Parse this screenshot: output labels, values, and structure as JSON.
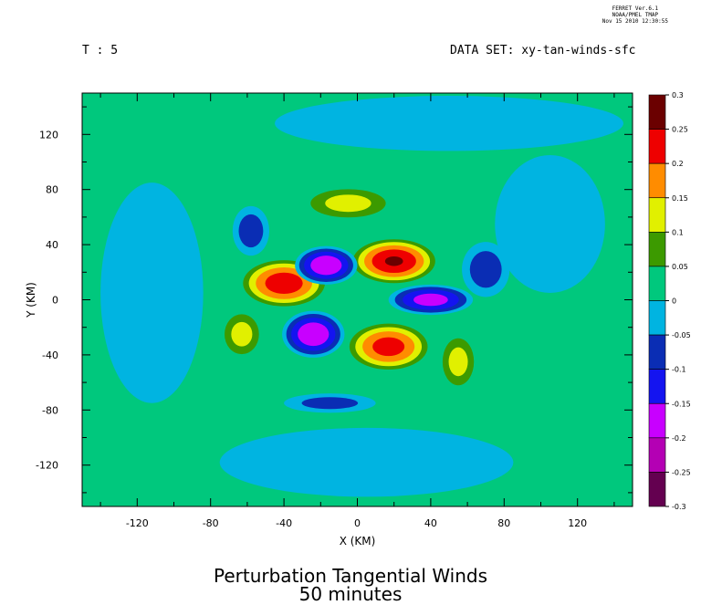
{
  "header": {
    "stamp": [
      "FERRET Ver.6.1",
      "NOAA/PMEL TMAP",
      "Nov 15 2010 12:30:55"
    ],
    "time_label": "T : 5",
    "dataset_label": "DATA SET: xy-tan-winds-sfc"
  },
  "chart_data": {
    "type": "heatmap",
    "title": "Perturbation Tangential Winds",
    "subtitle": "50 minutes",
    "xlabel": "X (KM)",
    "ylabel": "Y (KM)",
    "xlim": [
      -150,
      150
    ],
    "ylim": [
      -150,
      150
    ],
    "x_ticks": [
      -120,
      -80,
      -40,
      0,
      40,
      80,
      120
    ],
    "y_ticks": [
      120,
      80,
      40,
      0,
      -40,
      -80,
      -120
    ],
    "colorbar": {
      "levels": [
        "0.3",
        "0.25",
        "0.2",
        "0.15",
        "0.1",
        "0.05",
        "0",
        "-0.05",
        "-0.1",
        "-0.15",
        "-0.2",
        "-0.25",
        "-0.3"
      ],
      "colors": [
        "#6b0000",
        "#ee0000",
        "#ff8c00",
        "#e1f000",
        "#3c9a00",
        "#00c87d",
        "#00b4e1",
        "#0a2db4",
        "#1414f0",
        "#c800ff",
        "#b400b4",
        "#640050"
      ]
    },
    "background_value": 0.02,
    "features": [
      {
        "sign": "positive",
        "x": 20,
        "y": 28,
        "rx": 24,
        "ry": 17,
        "peak": 0.26
      },
      {
        "sign": "positive",
        "x": -40,
        "y": 12,
        "rx": 24,
        "ry": 18,
        "peak": 0.24
      },
      {
        "sign": "positive",
        "x": 17,
        "y": -34,
        "rx": 23,
        "ry": 18,
        "peak": 0.23
      },
      {
        "sign": "negative",
        "x": -17,
        "y": 25,
        "rx": 17,
        "ry": 14,
        "peak": -0.2
      },
      {
        "sign": "negative",
        "x": -24,
        "y": -25,
        "rx": 17,
        "ry": 17,
        "peak": -0.2
      },
      {
        "sign": "negative",
        "x": 40,
        "y": 0,
        "rx": 23,
        "ry": 11,
        "peak": -0.18
      },
      {
        "sign": "negative",
        "x": -58,
        "y": 50,
        "rx": 10,
        "ry": 18,
        "peak": -0.09
      },
      {
        "sign": "negative",
        "x": 70,
        "y": 22,
        "rx": 13,
        "ry": 20,
        "peak": -0.09
      },
      {
        "sign": "negative",
        "x": -15,
        "y": -75,
        "rx": 25,
        "ry": 7,
        "peak": -0.08
      },
      {
        "sign": "positive",
        "x": -5,
        "y": 70,
        "rx": 24,
        "ry": 12,
        "peak": 0.13
      },
      {
        "sign": "positive",
        "x": -63,
        "y": -25,
        "rx": 11,
        "ry": 17,
        "peak": 0.13
      },
      {
        "sign": "positive",
        "x": 55,
        "y": -45,
        "rx": 10,
        "ry": 20,
        "peak": 0.13
      },
      {
        "sign": "negative",
        "x": -112,
        "y": 5,
        "rx": 28,
        "ry": 80,
        "peak": -0.04
      },
      {
        "sign": "negative",
        "x": 105,
        "y": 55,
        "rx": 30,
        "ry": 50,
        "peak": -0.04
      },
      {
        "sign": "negative",
        "x": 5,
        "y": -118,
        "rx": 80,
        "ry": 25,
        "peak": -0.04
      },
      {
        "sign": "negative",
        "x": 50,
        "y": 128,
        "rx": 95,
        "ry": 20,
        "peak": -0.04
      }
    ]
  }
}
